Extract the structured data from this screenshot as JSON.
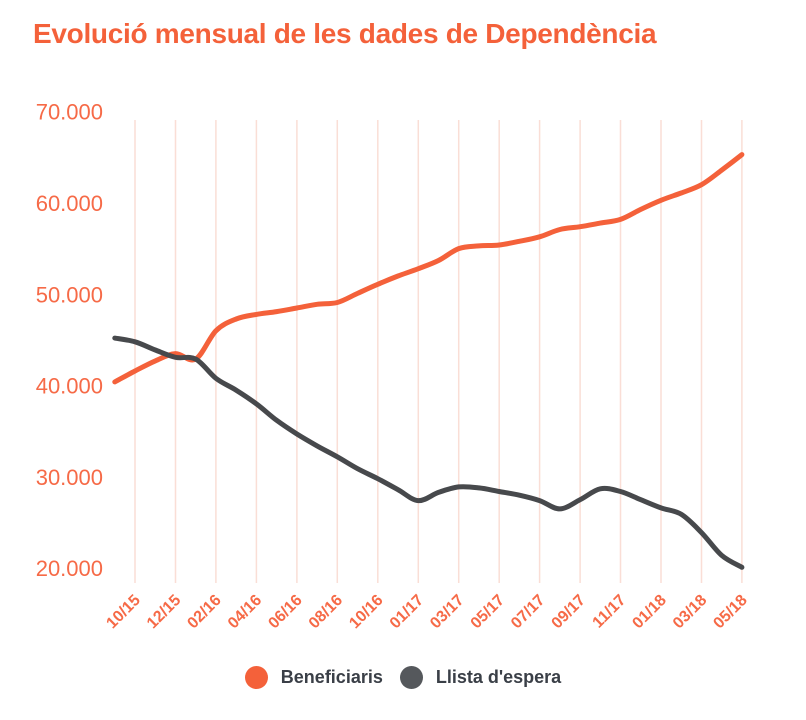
{
  "title": "Evolució mensual de les dades de Dependència",
  "colors": {
    "accent": "#F4613A",
    "grid": "#FADED6",
    "axis_label": "#F66A47",
    "legend_text": "#3A3F47",
    "background": "#FFFFFF"
  },
  "legend": [
    {
      "label": "Beneficiaris",
      "color": "#F4613A"
    },
    {
      "label": "Llista d'espera",
      "color": "#55585C"
    }
  ],
  "chart_data": {
    "type": "line",
    "title": "Evolució mensual de les dades de Dependència",
    "x": [
      "09/15",
      "10/15",
      "11/15",
      "12/15",
      "01/16",
      "02/16",
      "03/16",
      "04/16",
      "05/16",
      "06/16",
      "07/16",
      "08/16",
      "09/16",
      "10/16",
      "11/16",
      "01/17",
      "02/17",
      "03/17",
      "04/17",
      "05/17",
      "06/17",
      "07/17",
      "08/17",
      "09/17",
      "10/17",
      "11/17",
      "12/17",
      "01/18",
      "02/18",
      "03/18",
      "04/18",
      "05/18"
    ],
    "xticklabels": [
      "10/15",
      "12/15",
      "02/16",
      "04/16",
      "06/16",
      "08/16",
      "10/16",
      "01/17",
      "03/17",
      "05/17",
      "07/17",
      "09/17",
      "11/17",
      "01/18",
      "03/18",
      "05/18"
    ],
    "yticklabels": [
      "70.000",
      "60.000",
      "50.000",
      "40.000",
      "30.000",
      "20.000"
    ],
    "ylim": [
      20000,
      70000
    ],
    "grid": "vertical",
    "legend_position": "bottom-center",
    "series": [
      {
        "name": "Beneficiaris",
        "color": "#F4613A",
        "values": [
          40400,
          41600,
          42700,
          43500,
          42900,
          46000,
          47300,
          47800,
          48100,
          48500,
          48900,
          49100,
          50100,
          51100,
          52000,
          52800,
          53700,
          55000,
          55300,
          55400,
          55800,
          56300,
          57100,
          57400,
          57800,
          58200,
          59300,
          60300,
          61100,
          62000,
          63600,
          65300
        ]
      },
      {
        "name": "Llista d'espera",
        "color": "#47494C",
        "values": [
          45200,
          44800,
          43900,
          43100,
          42900,
          40800,
          39500,
          38000,
          36200,
          34700,
          33400,
          32200,
          30900,
          29800,
          28600,
          27400,
          28300,
          28900,
          28800,
          28400,
          28000,
          27400,
          26500,
          27500,
          28700,
          28400,
          27500,
          26600,
          25900,
          23900,
          21400,
          20100
        ]
      }
    ]
  }
}
